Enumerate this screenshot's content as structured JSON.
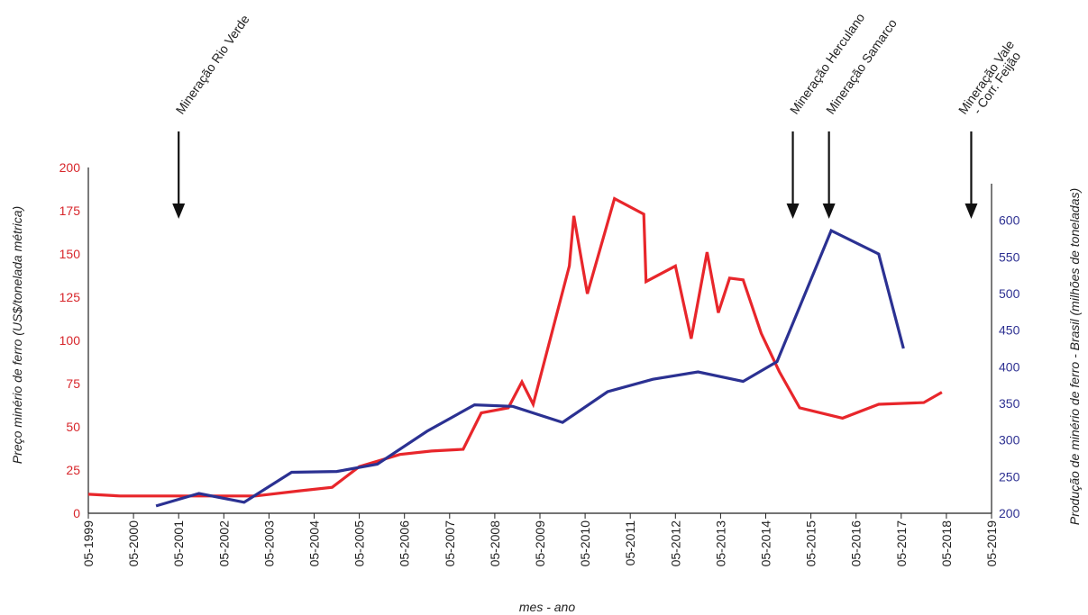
{
  "chart_data": {
    "type": "line",
    "xlabel": "mes - ano",
    "ylabel_left": "Preço minério de ferro (US$/tonelada métrica)",
    "ylabel_right": "Produção de minério de ferro - Brasil (milhões de toneladas)",
    "x_ticks": [
      "05-1999",
      "05-2000",
      "05-2001",
      "05-2002",
      "05-2003",
      "05-2004",
      "05-2005",
      "05-2006",
      "05-2007",
      "05-2008",
      "05-2009",
      "05-2010",
      "05-2011",
      "05-2012",
      "05-2013",
      "05-2014",
      "05-2015",
      "05-2016",
      "05-2017",
      "05-2018",
      "05-2019"
    ],
    "x_range": [
      1999.0,
      2019.0
    ],
    "ylim_left": [
      0,
      200
    ],
    "ylim_right": [
      200,
      650
    ],
    "yticks_left": [
      0,
      25,
      50,
      75,
      100,
      125,
      150,
      175,
      200
    ],
    "yticks_right": [
      200,
      250,
      300,
      350,
      400,
      450,
      500,
      550,
      600
    ],
    "grid": false,
    "colors": {
      "price": "#e8262b",
      "production": "#2b3192",
      "left_axis": "#d7262b",
      "right_axis": "#2e3192"
    },
    "series": [
      {
        "axis": "left",
        "values": [
          {
            "x": 1999.0,
            "y": 11
          },
          {
            "x": 1999.7,
            "y": 10
          },
          {
            "x": 2000.7,
            "y": 10
          },
          {
            "x": 2001.7,
            "y": 10
          },
          {
            "x": 2002.7,
            "y": 10
          },
          {
            "x": 2003.7,
            "y": 13
          },
          {
            "x": 2004.4,
            "y": 15
          },
          {
            "x": 2005.0,
            "y": 27
          },
          {
            "x": 2005.9,
            "y": 34
          },
          {
            "x": 2006.6,
            "y": 36
          },
          {
            "x": 2007.3,
            "y": 37
          },
          {
            "x": 2007.7,
            "y": 58
          },
          {
            "x": 2008.3,
            "y": 61
          },
          {
            "x": 2008.6,
            "y": 76
          },
          {
            "x": 2008.85,
            "y": 63
          },
          {
            "x": 2009.65,
            "y": 143
          },
          {
            "x": 2009.75,
            "y": 172
          },
          {
            "x": 2010.05,
            "y": 127
          },
          {
            "x": 2010.65,
            "y": 182
          },
          {
            "x": 2011.3,
            "y": 173
          },
          {
            "x": 2011.35,
            "y": 134
          },
          {
            "x": 2012.0,
            "y": 143
          },
          {
            "x": 2012.35,
            "y": 101
          },
          {
            "x": 2012.7,
            "y": 151
          },
          {
            "x": 2012.95,
            "y": 116
          },
          {
            "x": 2013.2,
            "y": 136
          },
          {
            "x": 2013.5,
            "y": 135
          },
          {
            "x": 2013.9,
            "y": 104
          },
          {
            "x": 2014.3,
            "y": 82
          },
          {
            "x": 2014.75,
            "y": 61
          },
          {
            "x": 2015.7,
            "y": 55
          },
          {
            "x": 2016.5,
            "y": 63
          },
          {
            "x": 2017.5,
            "y": 64
          },
          {
            "x": 2017.9,
            "y": 70
          }
        ]
      },
      {
        "axis": "right",
        "values": [
          {
            "x": 2000.5,
            "y": 210
          },
          {
            "x": 2001.45,
            "y": 227
          },
          {
            "x": 2002.45,
            "y": 215
          },
          {
            "x": 2003.5,
            "y": 256
          },
          {
            "x": 2004.5,
            "y": 257
          },
          {
            "x": 2005.4,
            "y": 267
          },
          {
            "x": 2006.5,
            "y": 312
          },
          {
            "x": 2007.55,
            "y": 348
          },
          {
            "x": 2008.4,
            "y": 346
          },
          {
            "x": 2009.5,
            "y": 324
          },
          {
            "x": 2010.5,
            "y": 366
          },
          {
            "x": 2011.5,
            "y": 383
          },
          {
            "x": 2012.5,
            "y": 393
          },
          {
            "x": 2013.5,
            "y": 380
          },
          {
            "x": 2014.25,
            "y": 407
          },
          {
            "x": 2015.45,
            "y": 586
          },
          {
            "x": 2016.5,
            "y": 554
          },
          {
            "x": 2017.05,
            "y": 425
          }
        ]
      }
    ],
    "events": [
      {
        "label": "Mineração Rio Verde",
        "x": 2001.0
      },
      {
        "label": "Mineração Herculano",
        "x": 2014.6
      },
      {
        "label": "Mineração Samarco",
        "x": 2015.4
      },
      {
        "label": "Mineração Vale",
        "label2": "- Corr. Feijão",
        "x": 2018.55
      }
    ]
  }
}
